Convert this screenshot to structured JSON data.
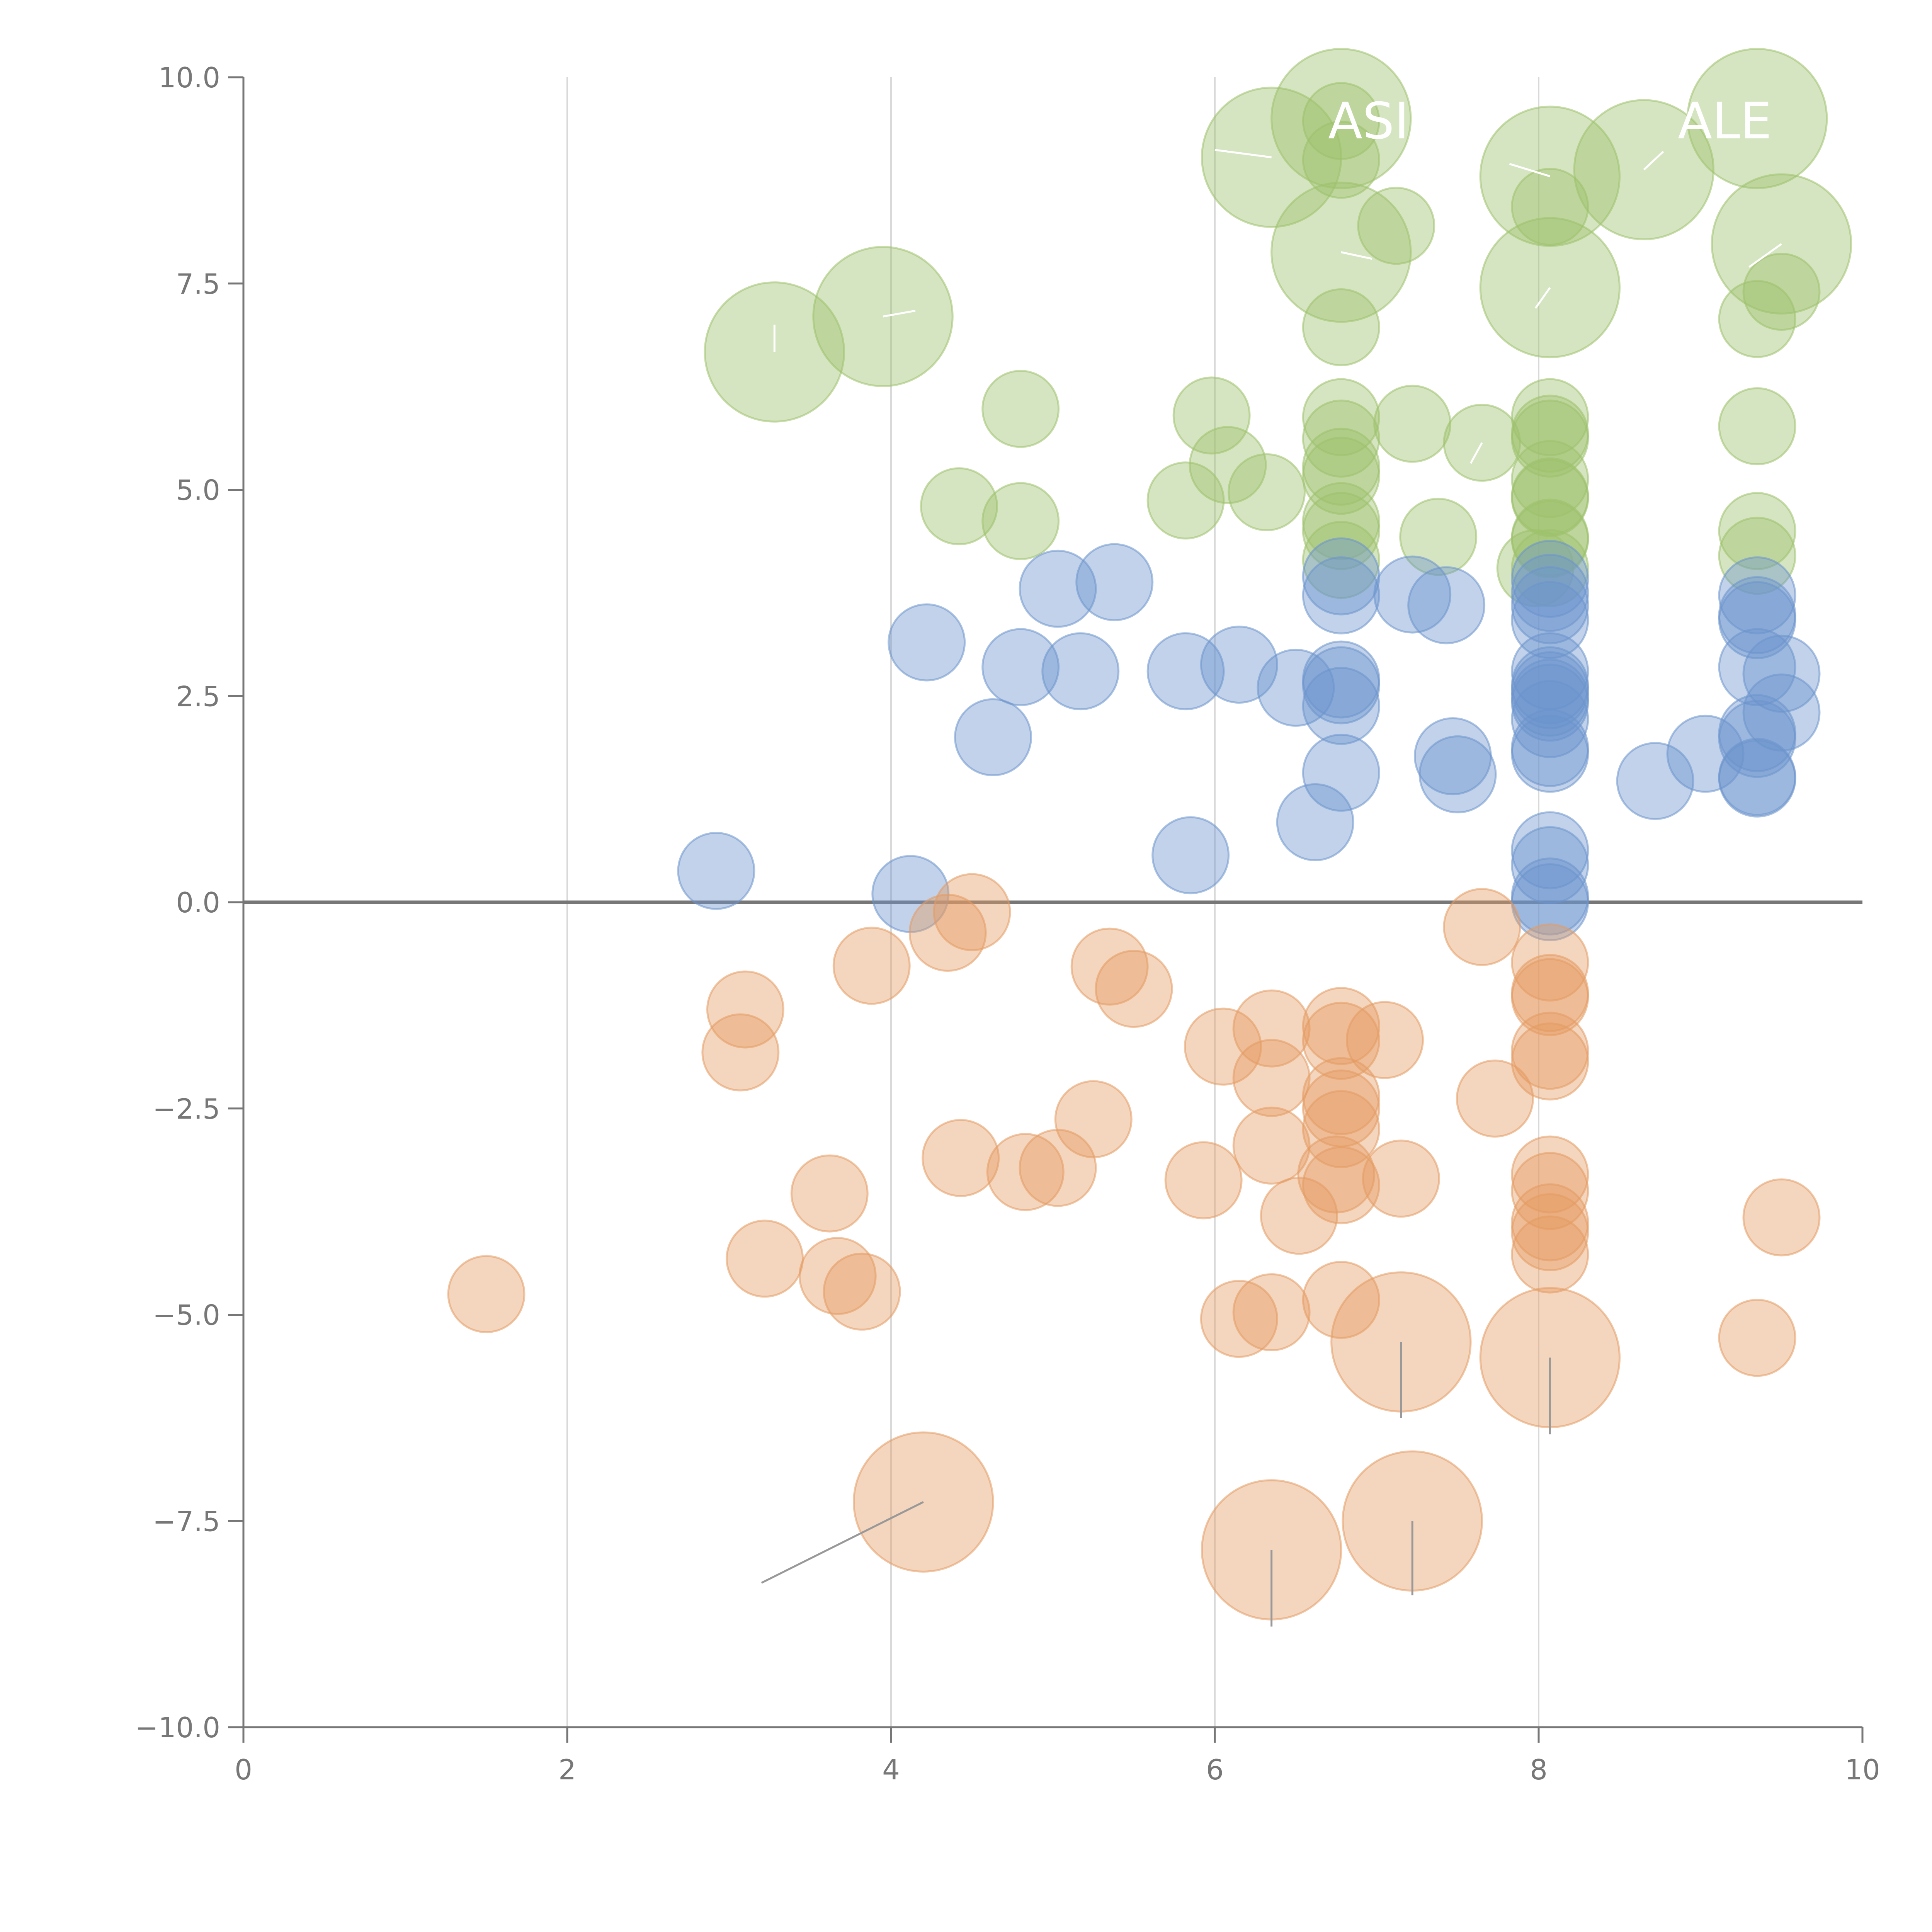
{
  "chart_data": {
    "type": "scatter",
    "title": "",
    "xlabel": "",
    "ylabel": "",
    "xlim": [
      0,
      10
    ],
    "ylim": [
      -10,
      10
    ],
    "x_ticks": [
      0,
      2,
      4,
      6,
      8,
      10
    ],
    "y_ticks": [
      10,
      7.5,
      5,
      2.5,
      0,
      -2.5,
      -5,
      -7.5,
      -10
    ],
    "x_tick_labels": [
      "0",
      "2",
      "4",
      "6",
      "8",
      "10"
    ],
    "y_tick_labels": [
      "10.0",
      "7.5",
      "5.0",
      "2.5",
      "0.0",
      "−2.5",
      "−5.0",
      "−7.5",
      "−10.0"
    ],
    "grid": "vertical",
    "zero_line": true,
    "series": [
      {
        "name": "green",
        "color": "#9dc16b",
        "points": [
          [
            6.78,
            9.47,
            1
          ],
          [
            6.78,
            9.0,
            1
          ],
          [
            6.35,
            9.03,
            2
          ],
          [
            6.78,
            9.5,
            2
          ],
          [
            8.07,
            8.8,
            2
          ],
          [
            8.65,
            8.88,
            2
          ],
          [
            9.35,
            9.5,
            2
          ],
          [
            8.07,
            8.43,
            1
          ],
          [
            7.12,
            8.2,
            1
          ],
          [
            6.78,
            7.88,
            2
          ],
          [
            9.5,
            7.98,
            2
          ],
          [
            8.07,
            7.45,
            2
          ],
          [
            3.95,
            7.1,
            2
          ],
          [
            3.28,
            6.67,
            2
          ],
          [
            9.5,
            7.4,
            1
          ],
          [
            9.35,
            7.07,
            1
          ],
          [
            6.78,
            6.97,
            1
          ],
          [
            4.8,
            5.98,
            1
          ],
          [
            5.98,
            5.9,
            1
          ],
          [
            6.78,
            5.88,
            1
          ],
          [
            8.07,
            5.88,
            1
          ],
          [
            7.22,
            5.8,
            1
          ],
          [
            9.35,
            5.77,
            1
          ],
          [
            8.07,
            5.68,
            1
          ],
          [
            6.78,
            5.62,
            1
          ],
          [
            8.07,
            5.62,
            1
          ],
          [
            7.65,
            5.57,
            1
          ],
          [
            6.08,
            5.3,
            1
          ],
          [
            6.78,
            5.28,
            1
          ],
          [
            6.78,
            5.17,
            1
          ],
          [
            8.07,
            5.13,
            1
          ],
          [
            6.32,
            4.97,
            1
          ],
          [
            5.82,
            4.87,
            1
          ],
          [
            8.07,
            4.92,
            1
          ],
          [
            8.07,
            4.9,
            1
          ],
          [
            4.42,
            4.8,
            1
          ],
          [
            4.8,
            4.62,
            1
          ],
          [
            6.78,
            4.62,
            1
          ],
          [
            6.78,
            4.5,
            1
          ],
          [
            9.35,
            4.5,
            1
          ],
          [
            8.07,
            4.42,
            1
          ],
          [
            8.07,
            4.4,
            1
          ],
          [
            7.38,
            4.43,
            1
          ],
          [
            9.35,
            4.2,
            1
          ],
          [
            6.78,
            4.15,
            1
          ],
          [
            7.98,
            4.05,
            1
          ],
          [
            8.07,
            4.05,
            1
          ]
        ]
      },
      {
        "name": "blue",
        "color": "#6b93cc",
        "points": [
          [
            8.07,
            3.92,
            1
          ],
          [
            6.78,
            3.95,
            1
          ],
          [
            5.38,
            3.88,
            1
          ],
          [
            5.03,
            3.8,
            1
          ],
          [
            7.22,
            3.73,
            1
          ],
          [
            6.78,
            3.72,
            1
          ],
          [
            9.35,
            3.72,
            1
          ],
          [
            8.07,
            3.75,
            1
          ],
          [
            8.07,
            3.6,
            1
          ],
          [
            7.43,
            3.6,
            1
          ],
          [
            8.07,
            3.42,
            1
          ],
          [
            9.35,
            3.48,
            1
          ],
          [
            9.35,
            3.42,
            1
          ],
          [
            4.22,
            3.15,
            1
          ],
          [
            4.8,
            2.85,
            1
          ],
          [
            5.17,
            2.8,
            1
          ],
          [
            5.82,
            2.8,
            1
          ],
          [
            6.15,
            2.88,
            1
          ],
          [
            9.35,
            2.85,
            1
          ],
          [
            8.07,
            2.8,
            1
          ],
          [
            9.5,
            2.77,
            1
          ],
          [
            6.78,
            2.7,
            1
          ],
          [
            6.78,
            2.63,
            1
          ],
          [
            6.5,
            2.6,
            1
          ],
          [
            8.07,
            2.63,
            1
          ],
          [
            8.07,
            2.57,
            1
          ],
          [
            8.07,
            2.48,
            1
          ],
          [
            8.07,
            2.42,
            1
          ],
          [
            6.78,
            2.38,
            1
          ],
          [
            9.5,
            2.3,
            1
          ],
          [
            8.07,
            2.22,
            1
          ],
          [
            9.35,
            2.05,
            1
          ],
          [
            9.35,
            1.98,
            1
          ],
          [
            4.63,
            2.0,
            1
          ],
          [
            8.07,
            1.87,
            1
          ],
          [
            8.07,
            1.8,
            1
          ],
          [
            9.03,
            1.8,
            1
          ],
          [
            7.47,
            1.77,
            1
          ],
          [
            6.78,
            1.57,
            1
          ],
          [
            7.5,
            1.55,
            1
          ],
          [
            9.35,
            1.52,
            1
          ],
          [
            9.35,
            1.5,
            1
          ],
          [
            8.72,
            1.47,
            1
          ],
          [
            6.62,
            0.97,
            1
          ],
          [
            8.07,
            0.63,
            1
          ],
          [
            5.85,
            0.57,
            1
          ],
          [
            8.07,
            0.45,
            1
          ],
          [
            2.92,
            0.38,
            1
          ],
          [
            4.12,
            0.1,
            1
          ],
          [
            8.07,
            0.07,
            1
          ],
          [
            8.07,
            0.0,
            1
          ]
        ]
      },
      {
        "name": "orange",
        "color": "#e49a62",
        "points": [
          [
            4.5,
            -0.12,
            1
          ],
          [
            4.35,
            -0.37,
            1
          ],
          [
            7.65,
            -0.3,
            1
          ],
          [
            3.88,
            -0.77,
            1
          ],
          [
            5.35,
            -0.78,
            1
          ],
          [
            8.07,
            -0.73,
            1
          ],
          [
            5.5,
            -1.05,
            1
          ],
          [
            8.07,
            -1.1,
            1
          ],
          [
            8.07,
            -1.15,
            1
          ],
          [
            3.1,
            -1.3,
            1
          ],
          [
            6.35,
            -1.53,
            1
          ],
          [
            6.78,
            -1.5,
            1
          ],
          [
            6.78,
            -1.68,
            1
          ],
          [
            7.05,
            -1.67,
            1
          ],
          [
            6.05,
            -1.75,
            1
          ],
          [
            3.07,
            -1.82,
            1
          ],
          [
            8.07,
            -1.8,
            1
          ],
          [
            8.07,
            -1.93,
            1
          ],
          [
            6.35,
            -2.13,
            1
          ],
          [
            6.78,
            -2.35,
            1
          ],
          [
            7.73,
            -2.38,
            1
          ],
          [
            6.78,
            -2.5,
            1
          ],
          [
            5.25,
            -2.63,
            1
          ],
          [
            6.78,
            -2.75,
            1
          ],
          [
            6.35,
            -2.95,
            1
          ],
          [
            4.43,
            -3.1,
            1
          ],
          [
            5.03,
            -3.22,
            1
          ],
          [
            4.83,
            -3.27,
            1
          ],
          [
            8.07,
            -3.3,
            1
          ],
          [
            6.75,
            -3.3,
            1
          ],
          [
            5.93,
            -3.37,
            1
          ],
          [
            7.15,
            -3.35,
            1
          ],
          [
            6.78,
            -3.43,
            1
          ],
          [
            8.07,
            -3.5,
            1
          ],
          [
            3.62,
            -3.53,
            1
          ],
          [
            6.52,
            -3.8,
            1
          ],
          [
            9.5,
            -3.82,
            1
          ],
          [
            8.07,
            -3.88,
            1
          ],
          [
            8.07,
            -4.0,
            1
          ],
          [
            8.07,
            -4.27,
            1
          ],
          [
            3.22,
            -4.32,
            1
          ],
          [
            3.67,
            -4.53,
            1
          ],
          [
            3.82,
            -4.72,
            1
          ],
          [
            1.5,
            -4.75,
            1
          ],
          [
            6.78,
            -4.82,
            1
          ],
          [
            6.35,
            -4.97,
            1
          ],
          [
            6.15,
            -5.05,
            1
          ],
          [
            9.35,
            -5.28,
            1
          ],
          [
            7.15,
            -5.33,
            2
          ],
          [
            8.07,
            -5.52,
            2
          ],
          [
            4.2,
            -7.27,
            2
          ],
          [
            7.22,
            -7.5,
            2
          ],
          [
            6.35,
            -7.85,
            2
          ]
        ]
      }
    ],
    "size_scale": {
      "small_radius_units": 0.235,
      "large_radius_units": 0.43
    },
    "annotations": [
      {
        "text": "ASI",
        "anchor": [
          6.95,
          9.47
        ]
      },
      {
        "text": "ALE",
        "anchor": [
          9.15,
          9.47
        ]
      }
    ],
    "leader_lines": [
      {
        "from": [
          4.2,
          -7.27
        ],
        "to": [
          3.2,
          -8.25
        ],
        "color": "#999999"
      },
      {
        "from": [
          7.15,
          -5.33
        ],
        "to": [
          7.15,
          -6.25
        ],
        "color": "#999999"
      },
      {
        "from": [
          8.07,
          -5.52
        ],
        "to": [
          8.07,
          -6.45
        ],
        "color": "#999999"
      },
      {
        "from": [
          7.22,
          -7.5
        ],
        "to": [
          7.22,
          -8.4
        ],
        "color": "#999999"
      },
      {
        "from": [
          6.35,
          -7.85
        ],
        "to": [
          6.35,
          -8.78
        ],
        "color": "#999999"
      },
      {
        "from": [
          3.28,
          6.67
        ],
        "to": [
          3.28,
          7.0
        ],
        "color": "#ffffff"
      },
      {
        "from": [
          3.95,
          7.1
        ],
        "to": [
          4.15,
          7.17
        ],
        "color": "#ffffff"
      },
      {
        "from": [
          6.35,
          9.03
        ],
        "to": [
          6.0,
          9.12
        ],
        "color": "#ffffff"
      },
      {
        "from": [
          6.78,
          7.88
        ],
        "to": [
          6.97,
          7.8
        ],
        "color": "#ffffff"
      },
      {
        "from": [
          8.07,
          8.8
        ],
        "to": [
          7.82,
          8.95
        ],
        "color": "#ffffff"
      },
      {
        "from": [
          8.07,
          7.45
        ],
        "to": [
          7.98,
          7.2
        ],
        "color": "#ffffff"
      },
      {
        "from": [
          8.65,
          8.88
        ],
        "to": [
          8.77,
          9.1
        ],
        "color": "#ffffff"
      },
      {
        "from": [
          9.5,
          7.98
        ],
        "to": [
          9.3,
          7.7
        ],
        "color": "#ffffff"
      },
      {
        "from": [
          7.65,
          5.57
        ],
        "to": [
          7.58,
          5.32
        ],
        "color": "#ffffff"
      }
    ],
    "colors": {
      "axis": "#777777",
      "grid": "#d9d9d9",
      "zero_line": "#777777",
      "tick_label": "#777777",
      "annotation": "#ffffff"
    }
  }
}
